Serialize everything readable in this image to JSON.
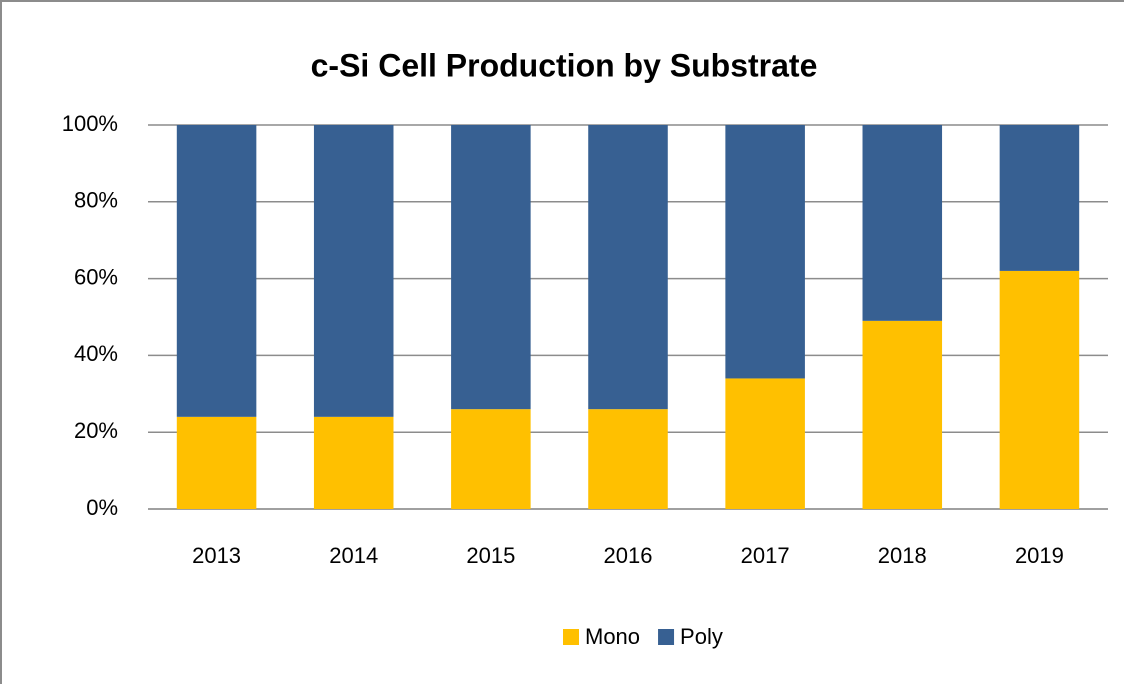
{
  "chart_data": {
    "type": "stacked_bar",
    "title": "c-Si Cell Production by Substrate",
    "categories": [
      "2013",
      "2014",
      "2015",
      "2016",
      "2017",
      "2018",
      "2019"
    ],
    "series": [
      {
        "name": "Mono",
        "color": "#ffc000",
        "values": [
          24,
          24,
          26,
          26,
          34,
          49,
          62
        ]
      },
      {
        "name": "Poly",
        "color": "#376092",
        "values": [
          76,
          76,
          74,
          74,
          66,
          51,
          38
        ]
      }
    ],
    "ylim": [
      0,
      100
    ],
    "yticks": [
      {
        "value": 0,
        "label": "0%"
      },
      {
        "value": 20,
        "label": "20%"
      },
      {
        "value": 40,
        "label": "40%"
      },
      {
        "value": 60,
        "label": "60%"
      },
      {
        "value": 80,
        "label": "80%"
      },
      {
        "value": 100,
        "label": "100%"
      }
    ],
    "grid": true,
    "legend": "bottom"
  }
}
